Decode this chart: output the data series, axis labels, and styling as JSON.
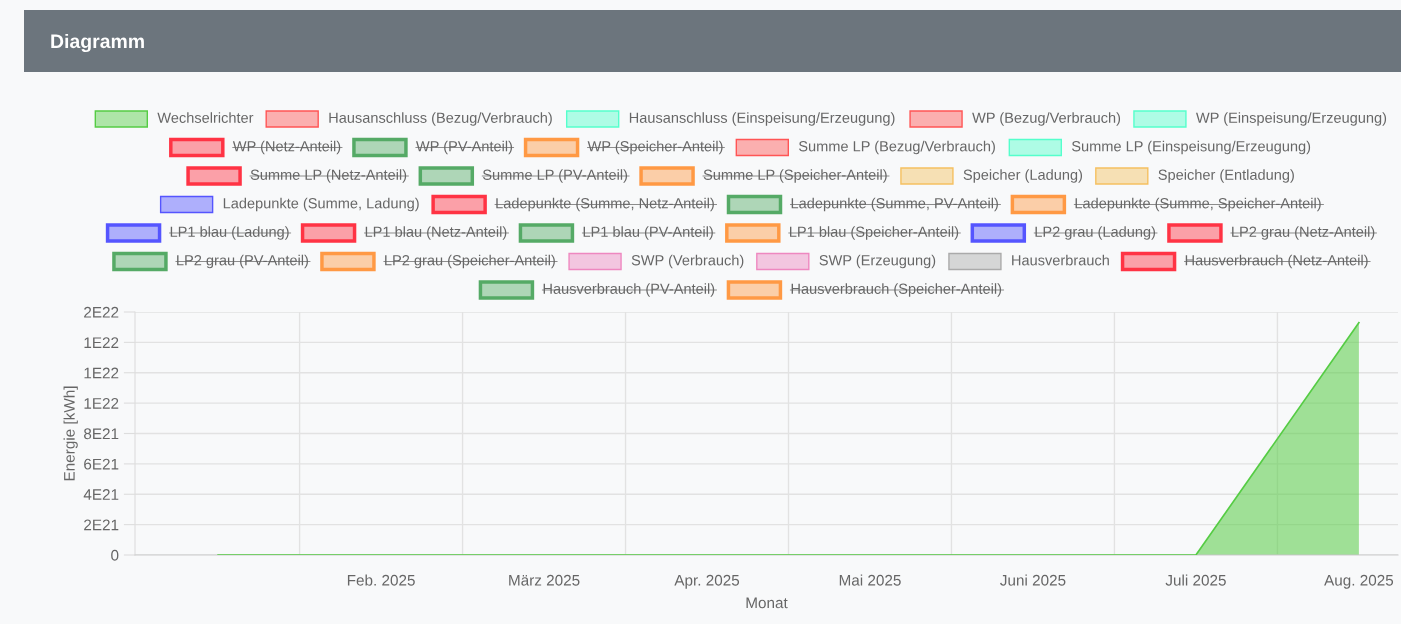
{
  "chart_data": {
    "type": "line",
    "title": "Diagramm",
    "xlabel": "Monat",
    "ylabel": "Energie [kWh]",
    "categories": [
      null,
      "Feb. 2025",
      "März 2025",
      "Apr. 2025",
      "Mai 2025",
      "Juni 2025",
      "Juli 2025",
      "Aug. 2025"
    ],
    "ylim": [
      0,
      1.6e+22
    ],
    "yticks": [
      0,
      {
        "value": 2e+21,
        "label": "2E21"
      },
      {
        "value": 4e+21,
        "label": "4E21"
      },
      {
        "value": 6e+21,
        "label": "6E21"
      },
      {
        "value": 8e+21,
        "label": "8E21"
      },
      {
        "value": 1e+22,
        "label": "1E22"
      },
      {
        "value": 1.2e+22,
        "label": "1E22"
      },
      {
        "value": 1.4e+22,
        "label": "1E22"
      },
      {
        "value": 1.6e+22,
        "label": "2E22"
      }
    ],
    "grid": true,
    "legend": "top",
    "marker": "none",
    "series": [
      {
        "name": "Wechselrichter",
        "type": "area",
        "color": "#55cc44",
        "values": [
          0,
          0,
          0,
          0,
          0,
          0,
          0,
          1.53e+22
        ]
      },
      {
        "name": "Hausanschluss (Bezug/Verbrauch)",
        "type": "line",
        "color": "#ff5555",
        "values": [
          null,
          null,
          null,
          null,
          null,
          null,
          null,
          null
        ]
      },
      {
        "name": "Hausanschluss (Einspeisung/Erzeugung)",
        "type": "line",
        "color": "#55ffcc",
        "values": [
          null,
          null,
          null,
          null,
          null,
          null,
          null,
          null
        ]
      },
      {
        "name": "WP (Bezug/Verbrauch)",
        "type": "line",
        "color": "#ff5555",
        "values": [
          null,
          null,
          null,
          null,
          null,
          null,
          null,
          null
        ]
      },
      {
        "name": "WP (Einspeisung/Erzeugung)",
        "type": "line",
        "color": "#55ffcc",
        "values": [
          null,
          null,
          null,
          null,
          null,
          null,
          null,
          null
        ]
      },
      {
        "name": "WP (Netz-Anteil)",
        "color": "#ff3344",
        "values": [
          null,
          null,
          null,
          null,
          null,
          null,
          null,
          null
        ]
      },
      {
        "name": "WP (PV-Anteil)",
        "color": "#55aa66",
        "values": [
          null,
          null,
          null,
          null,
          null,
          null,
          null,
          null
        ]
      },
      {
        "name": "WP (Speicher-Anteil)",
        "color": "#ff9944",
        "values": [
          null,
          null,
          null,
          null,
          null,
          null,
          null,
          null
        ]
      },
      {
        "name": "Summe LP (Bezug/Verbrauch)",
        "type": "line",
        "color": "#ff5555",
        "values": [
          null,
          null,
          null,
          null,
          null,
          null,
          null,
          null
        ]
      },
      {
        "name": "Summe LP (Einspeisung/Erzeugung)",
        "type": "line",
        "color": "#55ffcc",
        "values": [
          null,
          null,
          null,
          null,
          null,
          null,
          null,
          null
        ]
      },
      {
        "name": "Summe LP (Netz-Anteil)",
        "color": "#ff3344",
        "values": [
          null,
          null,
          null,
          null,
          null,
          null,
          null,
          null
        ]
      },
      {
        "name": "Summe LP (PV-Anteil)",
        "color": "#55aa66",
        "values": [
          null,
          null,
          null,
          null,
          null,
          null,
          null,
          null
        ]
      },
      {
        "name": "Summe LP (Speicher-Anteil)",
        "color": "#ff9944",
        "values": [
          null,
          null,
          null,
          null,
          null,
          null,
          null,
          null
        ]
      },
      {
        "name": "Speicher (Ladung)",
        "type": "line",
        "color": "#f5c060",
        "values": [
          null,
          null,
          null,
          null,
          null,
          null,
          null,
          null
        ]
      },
      {
        "name": "Speicher (Entladung)",
        "type": "line",
        "color": "#f5c060",
        "values": [
          null,
          null,
          null,
          null,
          null,
          null,
          null,
          null
        ]
      },
      {
        "name": "Ladepunkte (Summe, Ladung)",
        "type": "line",
        "color": "#5555ff",
        "values": [
          null,
          null,
          null,
          null,
          null,
          null,
          null,
          null
        ]
      },
      {
        "name": "Ladepunkte (Summe, Netz-Anteil)",
        "color": "#ff3344",
        "values": [
          null,
          null,
          null,
          null,
          null,
          null,
          null,
          null
        ]
      },
      {
        "name": "Ladepunkte (Summe, PV-Anteil)",
        "color": "#55aa66",
        "values": [
          null,
          null,
          null,
          null,
          null,
          null,
          null,
          null
        ]
      },
      {
        "name": "Ladepunkte (Summe, Speicher-Anteil)",
        "color": "#ff9944",
        "values": [
          null,
          null,
          null,
          null,
          null,
          null,
          null,
          null
        ]
      },
      {
        "name": "LP1 blau (Ladung)",
        "color": "#5555ff",
        "values": [
          null,
          null,
          null,
          null,
          null,
          null,
          null,
          null
        ]
      },
      {
        "name": "LP1 blau (Netz-Anteil)",
        "color": "#ff3344",
        "values": [
          null,
          null,
          null,
          null,
          null,
          null,
          null,
          null
        ]
      },
      {
        "name": "LP1 blau (PV-Anteil)",
        "color": "#55aa66",
        "values": [
          null,
          null,
          null,
          null,
          null,
          null,
          null,
          null
        ]
      },
      {
        "name": "LP1 blau (Speicher-Anteil)",
        "color": "#ff9944",
        "values": [
          null,
          null,
          null,
          null,
          null,
          null,
          null,
          null
        ]
      },
      {
        "name": "LP2 grau (Ladung)",
        "color": "#5555ff",
        "values": [
          null,
          null,
          null,
          null,
          null,
          null,
          null,
          null
        ]
      },
      {
        "name": "LP2 grau (Netz-Anteil)",
        "color": "#ff3344",
        "values": [
          null,
          null,
          null,
          null,
          null,
          null,
          null,
          null
        ]
      },
      {
        "name": "LP2 grau (PV-Anteil)",
        "color": "#55aa66",
        "values": [
          null,
          null,
          null,
          null,
          null,
          null,
          null,
          null
        ]
      },
      {
        "name": "LP2 grau (Speicher-Anteil)",
        "color": "#ff9944",
        "values": [
          null,
          null,
          null,
          null,
          null,
          null,
          null,
          null
        ]
      },
      {
        "name": "SWP (Verbrauch)",
        "type": "line",
        "color": "#ee88c0",
        "values": [
          null,
          null,
          null,
          null,
          null,
          null,
          null,
          null
        ]
      },
      {
        "name": "SWP (Erzeugung)",
        "type": "line",
        "color": "#ee88c0",
        "values": [
          null,
          null,
          null,
          null,
          null,
          null,
          null,
          null
        ]
      },
      {
        "name": "Hausverbrauch",
        "type": "line",
        "color": "#aaaaaa",
        "values": [
          null,
          null,
          null,
          null,
          null,
          null,
          null,
          null
        ]
      },
      {
        "name": "Hausverbrauch (Netz-Anteil)",
        "color": "#ff3344",
        "values": [
          null,
          null,
          null,
          null,
          null,
          null,
          null,
          null
        ]
      },
      {
        "name": "Hausverbrauch (PV-Anteil)",
        "color": "#55aa66",
        "values": [
          null,
          null,
          null,
          null,
          null,
          null,
          null,
          null
        ]
      },
      {
        "name": "Hausverbrauch (Speicher-Anteil)",
        "color": "#ff9944",
        "values": [
          null,
          null,
          null,
          null,
          null,
          null,
          null,
          null
        ]
      }
    ]
  }
}
